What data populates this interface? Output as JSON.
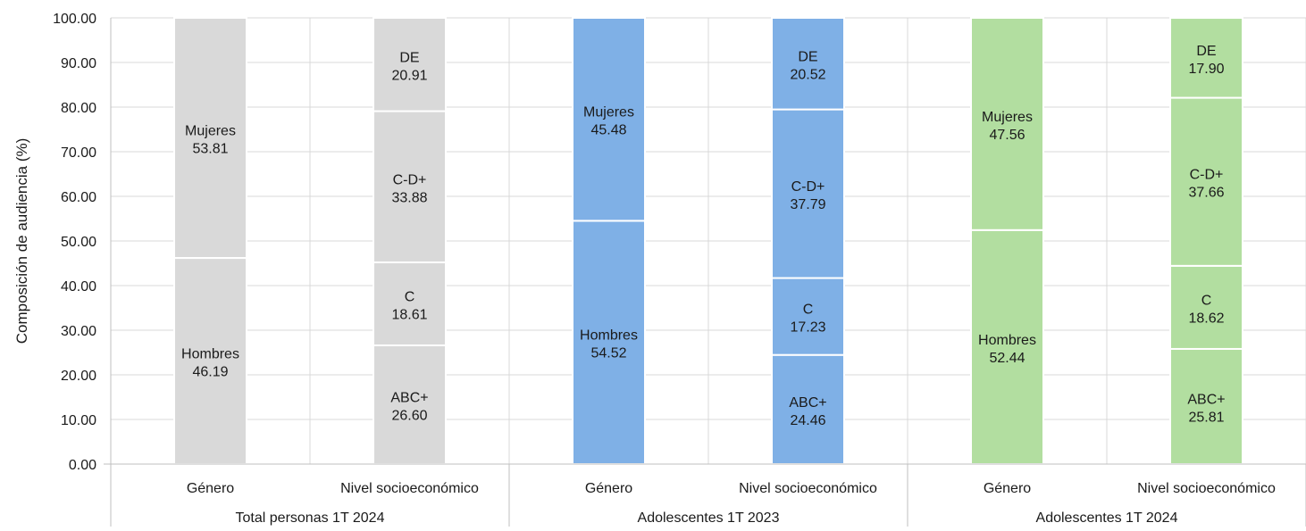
{
  "chart_data": {
    "type": "bar",
    "stacked": true,
    "ylabel": "Composición de audiencia (%)",
    "ylim": [
      0,
      100
    ],
    "yticks": [
      "0.00",
      "10.00",
      "20.00",
      "30.00",
      "40.00",
      "50.00",
      "60.00",
      "70.00",
      "80.00",
      "90.00",
      "100.00"
    ],
    "grid": true,
    "groups": [
      {
        "label": "Total personas 1T 2024",
        "color": "#d9d9d9",
        "bars": [
          {
            "label": "Género",
            "segments": [
              {
                "name": "Hombres",
                "value": 46.19,
                "label": "46.19"
              },
              {
                "name": "Mujeres",
                "value": 53.81,
                "label": "53.81"
              }
            ]
          },
          {
            "label": "Nivel socioeconómico",
            "segments": [
              {
                "name": "ABC+",
                "value": 26.6,
                "label": "26.60"
              },
              {
                "name": "C",
                "value": 18.61,
                "label": "18.61"
              },
              {
                "name": "C-D+",
                "value": 33.88,
                "label": "33.88"
              },
              {
                "name": "DE",
                "value": 20.91,
                "label": "20.91"
              }
            ]
          }
        ]
      },
      {
        "label": "Adolescentes 1T 2023",
        "color": "#7fb0e6",
        "bars": [
          {
            "label": "Género",
            "segments": [
              {
                "name": "Hombres",
                "value": 54.52,
                "label": "54.52"
              },
              {
                "name": "Mujeres",
                "value": 45.48,
                "label": "45.48"
              }
            ]
          },
          {
            "label": "Nivel socioeconómico",
            "segments": [
              {
                "name": "ABC+",
                "value": 24.46,
                "label": "24.46"
              },
              {
                "name": "C",
                "value": 17.23,
                "label": "17.23"
              },
              {
                "name": "C-D+",
                "value": 37.79,
                "label": "37.79"
              },
              {
                "name": "DE",
                "value": 20.52,
                "label": "20.52"
              }
            ]
          }
        ]
      },
      {
        "label": "Adolescentes 1T 2024",
        "color": "#b2dea0",
        "bars": [
          {
            "label": "Género",
            "segments": [
              {
                "name": "Hombres",
                "value": 52.44,
                "label": "52.44"
              },
              {
                "name": "Mujeres",
                "value": 47.56,
                "label": "47.56"
              }
            ]
          },
          {
            "label": "Nivel socioeconómico",
            "segments": [
              {
                "name": "ABC+",
                "value": 25.81,
                "label": "25.81"
              },
              {
                "name": "C",
                "value": 18.62,
                "label": "18.62"
              },
              {
                "name": "C-D+",
                "value": 37.66,
                "label": "37.66"
              },
              {
                "name": "DE",
                "value": 17.9,
                "label": "17.90"
              }
            ]
          }
        ]
      }
    ]
  }
}
